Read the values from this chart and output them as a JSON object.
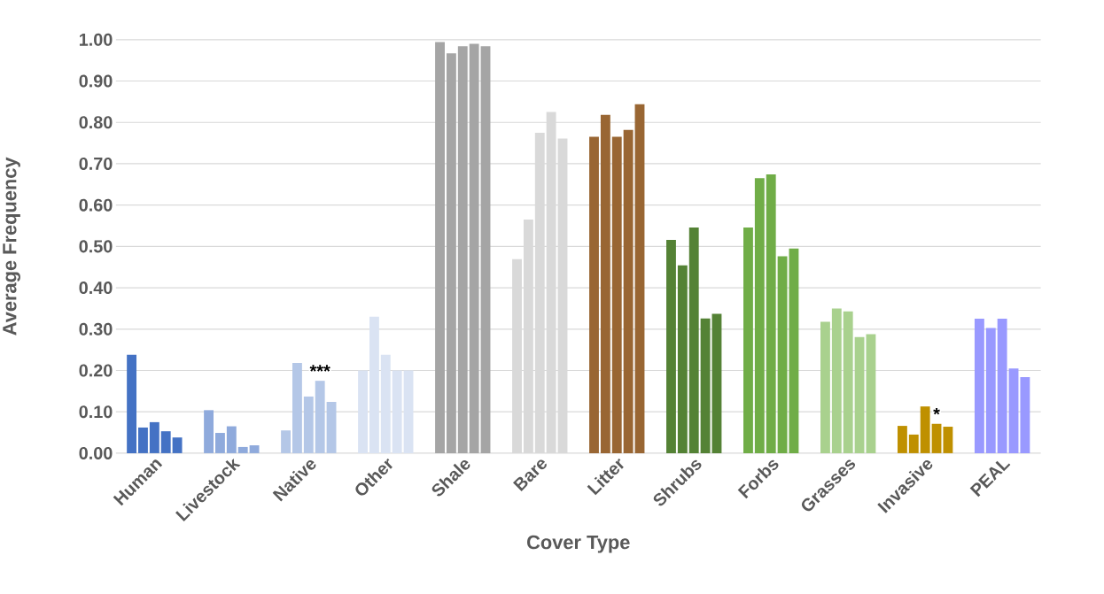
{
  "chart_data": {
    "type": "bar",
    "xlabel": "Cover Type",
    "ylabel": "Average Frequency",
    "categories": [
      "Human",
      "Livestock",
      "Native",
      "Other",
      "Shale",
      "Bare",
      "Litter",
      "Shrubs",
      "Forbs",
      "Grasses",
      "Invasive",
      "PEAL"
    ],
    "series": [
      {
        "colors": [
          "#4472c4",
          "#8faadc",
          "#b4c7e7",
          "#dae3f3",
          "#a5a5a5",
          "#d9d9d9",
          "#996633",
          "#548235",
          "#70ad47",
          "#a9d18e",
          "#bf9000",
          "#9999ff"
        ],
        "values": [
          0.238,
          0.104,
          0.055,
          0.2,
          0.994,
          0.469,
          0.765,
          0.516,
          0.546,
          0.318,
          0.066,
          0.325
        ]
      },
      {
        "colors": [
          "#4472c4",
          "#8faadc",
          "#b4c7e7",
          "#dae3f3",
          "#a5a5a5",
          "#d9d9d9",
          "#996633",
          "#548235",
          "#70ad47",
          "#a9d18e",
          "#bf9000",
          "#9999ff"
        ],
        "values": [
          0.062,
          0.049,
          0.218,
          0.33,
          0.967,
          0.565,
          0.818,
          0.454,
          0.665,
          0.35,
          0.045,
          0.303
        ]
      },
      {
        "colors": [
          "#4472c4",
          "#8faadc",
          "#b4c7e7",
          "#dae3f3",
          "#a5a5a5",
          "#d9d9d9",
          "#996633",
          "#548235",
          "#70ad47",
          "#a9d18e",
          "#bf9000",
          "#9999ff"
        ],
        "values": [
          0.075,
          0.065,
          0.137,
          0.238,
          0.984,
          0.775,
          0.765,
          0.546,
          0.674,
          0.343,
          0.113,
          0.325
        ]
      },
      {
        "colors": [
          "#4472c4",
          "#8faadc",
          "#b4c7e7",
          "#dae3f3",
          "#a5a5a5",
          "#d9d9d9",
          "#996633",
          "#548235",
          "#70ad47",
          "#a9d18e",
          "#bf9000",
          "#9999ff"
        ],
        "values": [
          0.053,
          0.015,
          0.175,
          0.2,
          0.99,
          0.825,
          0.782,
          0.326,
          0.476,
          0.281,
          0.071,
          0.205
        ]
      },
      {
        "colors": [
          "#4472c4",
          "#8faadc",
          "#b4c7e7",
          "#dae3f3",
          "#a5a5a5",
          "#d9d9d9",
          "#996633",
          "#548235",
          "#70ad47",
          "#a9d18e",
          "#bf9000",
          "#9999ff"
        ],
        "values": [
          0.038,
          0.019,
          0.124,
          0.2,
          0.984,
          0.761,
          0.844,
          0.337,
          0.495,
          0.288,
          0.064,
          0.184
        ]
      }
    ],
    "ylim": [
      0,
      1.0
    ],
    "yticks": [
      {
        "value": 0,
        "label": "0.00"
      },
      {
        "value": 0.1,
        "label": "0.10"
      },
      {
        "value": 0.2,
        "label": "0.20"
      },
      {
        "value": 0.3,
        "label": "0.30"
      },
      {
        "value": 0.4,
        "label": "0.40"
      },
      {
        "value": 0.5,
        "label": "0.50"
      },
      {
        "value": 0.6,
        "label": "0.60"
      },
      {
        "value": 0.7,
        "label": "0.70"
      },
      {
        "value": 0.8,
        "label": "0.80"
      },
      {
        "value": 0.9,
        "label": "0.90"
      },
      {
        "value": 1.0,
        "label": "1.00"
      }
    ],
    "grid": "y",
    "annotations": [
      {
        "text": "***",
        "x": "Native",
        "y": 0.175
      },
      {
        "text": "*",
        "x": "Invasive",
        "y": 0.071
      }
    ]
  }
}
